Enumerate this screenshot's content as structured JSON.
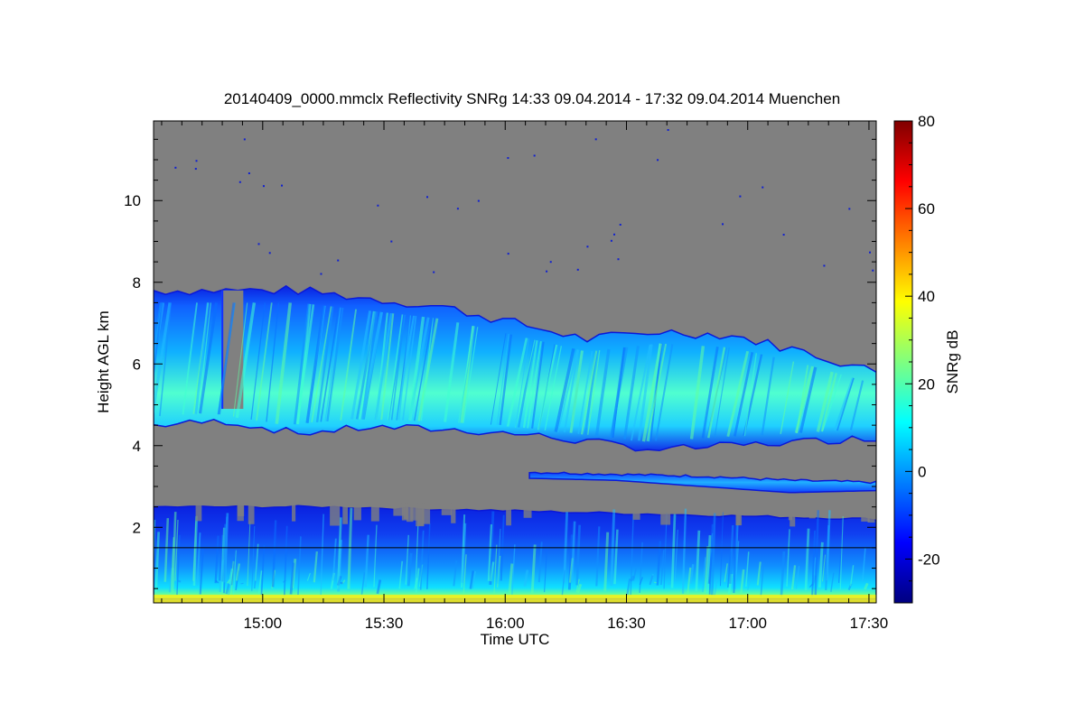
{
  "chart_data": {
    "type": "heatmap",
    "title": "20140409_0000.mmclx Reflectivity SNRg   14:33 09.04.2014 - 17:32 09.04.2014 Muenchen",
    "xlabel": "Time UTC",
    "ylabel": "Height AGL km",
    "colorbar_label": "SNRg dB",
    "x_range_hours": [
      14.55,
      17.53
    ],
    "y_range_km": [
      0.15,
      11.95
    ],
    "color_range_db": [
      -30,
      80
    ],
    "x_ticks": [
      {
        "value": 15.0,
        "label": "15:00"
      },
      {
        "value": 15.5,
        "label": "15:30"
      },
      {
        "value": 16.0,
        "label": "16:00"
      },
      {
        "value": 16.5,
        "label": "16:30"
      },
      {
        "value": 17.0,
        "label": "17:00"
      },
      {
        "value": 17.5,
        "label": "17:30"
      }
    ],
    "y_ticks": [
      {
        "value": 2,
        "label": "2"
      },
      {
        "value": 4,
        "label": "4"
      },
      {
        "value": 6,
        "label": "6"
      },
      {
        "value": 8,
        "label": "8"
      },
      {
        "value": 10,
        "label": "10"
      }
    ],
    "colorbar_ticks": [
      {
        "value": -20,
        "label": "-20"
      },
      {
        "value": 0,
        "label": "0"
      },
      {
        "value": 20,
        "label": "20"
      },
      {
        "value": 40,
        "label": "40"
      },
      {
        "value": 60,
        "label": "60"
      },
      {
        "value": 80,
        "label": "80"
      }
    ],
    "reference_line_km": 1.5,
    "background_color": "#808080",
    "colormap": [
      "#00007f",
      "#0000ff",
      "#007fff",
      "#00ffff",
      "#7fff7f",
      "#ffff00",
      "#ff7f00",
      "#ff0000",
      "#7f0000"
    ],
    "cloud_layers": [
      {
        "name": "upper-cloud",
        "t_start": 14.55,
        "t_end": 17.53,
        "base_km": [
          4.5,
          4.6,
          4.3,
          4.45,
          4.4,
          4.3,
          4.1,
          3.9,
          4.0,
          4.1,
          4.2
        ],
        "top_km": [
          7.8,
          7.8,
          7.8,
          7.6,
          7.4,
          7.0,
          6.6,
          6.8,
          6.7,
          6.3,
          5.8
        ],
        "peak_db": 22
      },
      {
        "name": "mid-layer",
        "t_start": 16.1,
        "t_end": 17.53,
        "base_km": [
          3.2,
          3.15,
          3.0,
          2.85,
          2.9
        ],
        "top_km": [
          3.35,
          3.3,
          3.25,
          3.15,
          3.1
        ],
        "peak_db": 8
      },
      {
        "name": "boundary-layer",
        "t_start": 14.55,
        "t_end": 17.53,
        "base_km": [
          0.25,
          0.25,
          0.25,
          0.25,
          0.25
        ],
        "top_km": [
          2.5,
          2.5,
          2.4,
          2.3,
          2.2
        ],
        "peak_db": 18
      }
    ]
  }
}
